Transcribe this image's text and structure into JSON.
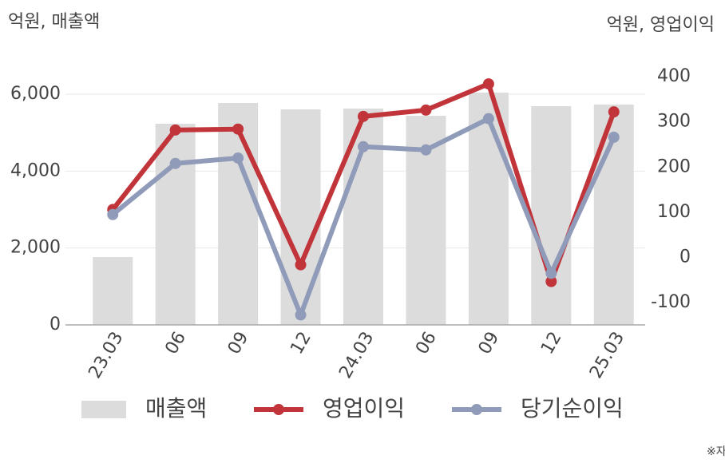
{
  "chart_data": {
    "type": "combo",
    "y_label": "억원, 매출액",
    "y2_label": "억원, 영업이익",
    "note": "※자",
    "categories": [
      "23.03",
      "06",
      "09",
      "12",
      "24.03",
      "06",
      "09",
      "12",
      "25.03"
    ],
    "series": [
      {
        "name": "매출액",
        "type": "bar",
        "color": "#dcdcdc",
        "values": [
          1765,
          5232,
          5772,
          5606,
          5626,
          5439,
          6042,
          5689,
          5730
        ]
      },
      {
        "name": "영업이익",
        "type": "line",
        "axis": "y2",
        "color": "#c0343a",
        "values": [
          106,
          282,
          284,
          -16,
          312,
          326,
          384,
          -53,
          322
        ]
      },
      {
        "name": "당기순이익",
        "type": "line",
        "axis": "y2",
        "color": "#8f9bb8",
        "values": [
          95,
          208,
          220,
          -127,
          245,
          238,
          307,
          -35,
          266
        ]
      }
    ],
    "ylim": [
      0,
      6457
    ],
    "yticks": [
      0,
      {
        "value": 2000,
        "label": "2,000"
      },
      {
        "value": 4000,
        "label": "4,000"
      },
      {
        "value": 6000,
        "label": "6,000"
      }
    ],
    "y2lim": [
      -149,
      400
    ],
    "y2ticks": [
      -100,
      0,
      100,
      200,
      300,
      400
    ],
    "grid": true
  }
}
